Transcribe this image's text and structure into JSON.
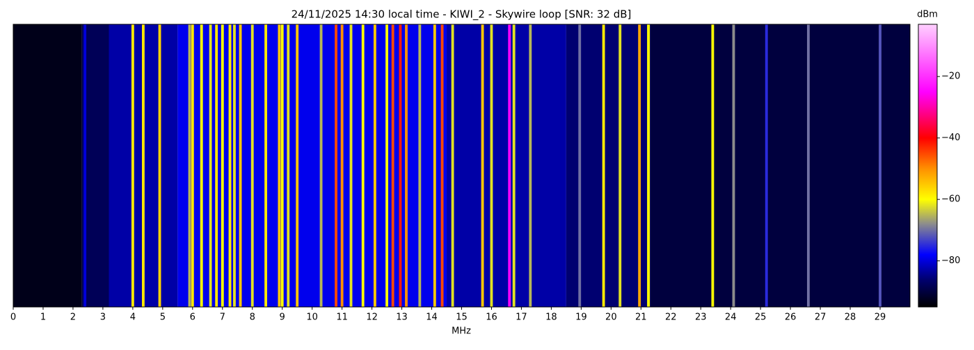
{
  "chart_data": {
    "type": "spectrogram",
    "title": "24/11/2025 14:30 local time - KIWI_2 - Skywire loop [SNR: 32 dB]",
    "x_label": "MHz",
    "colorbar_label": "dBm",
    "xlim": [
      0,
      30
    ],
    "xticks": [
      0,
      1,
      2,
      3,
      4,
      5,
      6,
      7,
      8,
      9,
      10,
      11,
      12,
      13,
      14,
      15,
      16,
      17,
      18,
      19,
      20,
      21,
      22,
      23,
      24,
      25,
      26,
      27,
      28,
      29
    ],
    "clim": [
      -95,
      -3
    ],
    "cticks": [
      {
        "value": -20,
        "label": "−20"
      },
      {
        "value": -40,
        "label": "−40"
      },
      {
        "value": -60,
        "label": "−60"
      },
      {
        "value": -80,
        "label": "−80"
      }
    ],
    "colormap": [
      {
        "value": -95,
        "color": "#000000"
      },
      {
        "value": -86,
        "color": "#000070"
      },
      {
        "value": -78,
        "color": "#0000ff"
      },
      {
        "value": -68,
        "color": "#8c8c8c"
      },
      {
        "value": -60,
        "color": "#ffff00"
      },
      {
        "value": -50,
        "color": "#ff9000"
      },
      {
        "value": -40,
        "color": "#ff0000"
      },
      {
        "value": -25,
        "color": "#ff00ff"
      },
      {
        "value": -3,
        "color": "#ffd0ff"
      }
    ],
    "bands": [
      {
        "range": [
          0,
          2.3
        ],
        "value": -93
      },
      {
        "range": [
          2.3,
          3.2
        ],
        "value": -88
      },
      {
        "range": [
          3.2,
          5.5
        ],
        "value": -83
      },
      {
        "range": [
          5.5,
          14.5
        ],
        "value": -79
      },
      {
        "range": [
          14.5,
          18.5
        ],
        "value": -83
      },
      {
        "range": [
          18.5,
          21.3
        ],
        "value": -86
      },
      {
        "range": [
          21.3,
          30
        ],
        "value": -90
      }
    ],
    "signals": {
      "x": [
        2.4,
        4.0,
        4.35,
        4.9,
        5.9,
        6.0,
        6.3,
        6.6,
        6.8,
        7.0,
        7.25,
        7.4,
        7.6,
        8.0,
        8.45,
        8.9,
        9.0,
        9.2,
        9.5,
        10.3,
        10.8,
        11.0,
        11.3,
        11.7,
        12.1,
        12.5,
        12.7,
        12.95,
        13.15,
        13.6,
        14.1,
        14.35,
        14.7,
        15.7,
        16.0,
        16.6,
        16.75,
        17.3,
        18.95,
        19.75,
        20.3,
        20.95,
        21.25,
        23.4,
        24.1,
        25.2,
        26.6,
        29.0
      ],
      "values": [
        -80,
        -58,
        -58,
        -56,
        -65,
        -58,
        -60,
        -62,
        -58,
        -60,
        -58,
        -62,
        -55,
        -62,
        -58,
        -55,
        -60,
        -62,
        -55,
        -65,
        -45,
        -50,
        -62,
        -60,
        -55,
        -60,
        -45,
        -42,
        -50,
        -65,
        -55,
        -45,
        -62,
        -55,
        -62,
        -25,
        -62,
        -65,
        -70,
        -58,
        -62,
        -52,
        -60,
        -60,
        -68,
        -75,
        -70,
        -72
      ]
    }
  }
}
